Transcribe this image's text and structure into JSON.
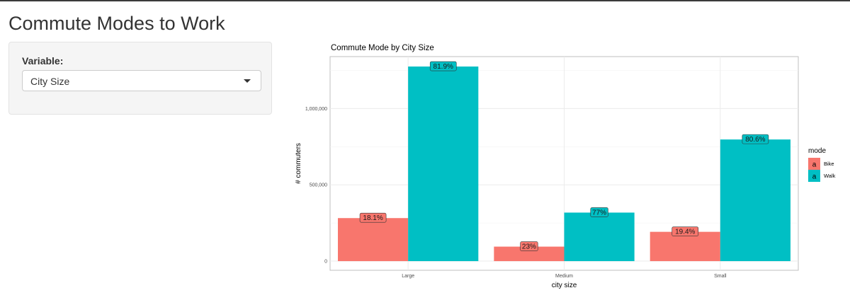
{
  "page": {
    "title": "Commute Modes to Work"
  },
  "sidebar": {
    "variable_label": "Variable:",
    "select": {
      "selected": "City Size",
      "icon": "chevron-down-icon"
    }
  },
  "colors": {
    "Bike": "#F8766D",
    "Walk": "#00BFC4",
    "panel_border": "#bfbfbf",
    "gridline": "#ebebeb"
  },
  "chart_data": {
    "type": "bar",
    "title": "Commute Mode by City Size",
    "xlabel": "city size",
    "ylabel": "# commuters",
    "categories": [
      "Large",
      "Medium",
      "Small"
    ],
    "series": [
      {
        "name": "Bike",
        "values": [
          282000,
          95000,
          192000
        ],
        "labels": [
          "18.1%",
          "23%",
          "19.4%"
        ]
      },
      {
        "name": "Walk",
        "values": [
          1275000,
          318000,
          797000
        ],
        "labels": [
          "81.9%",
          "77%",
          "80.6%"
        ]
      }
    ],
    "ylim": [
      -60000,
      1340000
    ],
    "yticks": [
      0,
      500000,
      1000000
    ],
    "ytick_labels": [
      "0",
      "500,000",
      "1,000,000"
    ],
    "legend": {
      "title": "mode",
      "placement": "right",
      "key_glyph": "a"
    },
    "grid": true
  }
}
